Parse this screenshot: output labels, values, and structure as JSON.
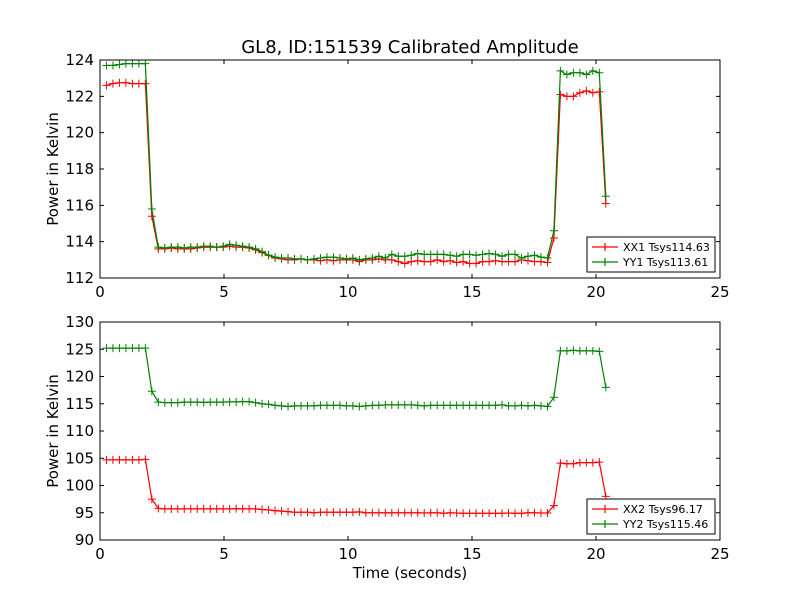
{
  "chart_data": [
    {
      "type": "line",
      "title": "GL8, ID:151539 Calibrated Amplitude",
      "xlabel": "",
      "ylabel": "Power in Kelvin",
      "xlim": [
        0,
        25
      ],
      "ylim": [
        112,
        124
      ],
      "xticks": [
        0,
        5,
        10,
        15,
        20,
        25
      ],
      "yticks": [
        112,
        114,
        116,
        118,
        120,
        122,
        124
      ],
      "legend_position": "lower-right",
      "x_start": 0.26,
      "x_step": 0.2615,
      "series": [
        {
          "name": "XX1 Tsys114.63",
          "color": "#ff0000",
          "values": [
            122.6,
            122.7,
            122.75,
            122.75,
            122.7,
            122.7,
            122.7,
            115.4,
            113.6,
            113.6,
            113.65,
            113.6,
            113.6,
            113.6,
            113.65,
            113.7,
            113.7,
            113.7,
            113.7,
            113.75,
            113.7,
            113.7,
            113.65,
            113.55,
            113.4,
            113.25,
            113.1,
            113.05,
            113.0,
            113.0,
            113.05,
            113.0,
            113.0,
            112.95,
            113.0,
            112.95,
            113.0,
            113.0,
            113.0,
            112.9,
            113.0,
            113.0,
            113.05,
            113.0,
            113.0,
            112.9,
            112.8,
            112.9,
            112.95,
            112.9,
            112.9,
            113.0,
            112.9,
            112.95,
            112.85,
            112.9,
            112.8,
            112.8,
            112.9,
            112.9,
            112.95,
            112.9,
            112.9,
            112.9,
            113.0,
            112.95,
            112.9,
            112.9,
            112.85,
            114.2,
            122.1,
            122.0,
            122.0,
            122.2,
            122.3,
            122.2,
            122.25,
            116.1
          ]
        },
        {
          "name": "YY1 Tsys113.61",
          "color": "#008000",
          "values": [
            123.7,
            123.7,
            123.75,
            123.8,
            123.8,
            123.8,
            123.8,
            115.8,
            113.7,
            113.65,
            113.7,
            113.7,
            113.65,
            113.7,
            113.7,
            113.75,
            113.75,
            113.7,
            113.75,
            113.85,
            113.8,
            113.75,
            113.7,
            113.6,
            113.45,
            113.25,
            113.15,
            113.1,
            113.1,
            113.05,
            113.05,
            113.0,
            113.05,
            113.1,
            113.15,
            113.15,
            113.1,
            113.05,
            113.1,
            113.0,
            113.05,
            113.1,
            113.2,
            113.1,
            113.3,
            113.2,
            113.2,
            113.25,
            113.35,
            113.3,
            113.3,
            113.3,
            113.3,
            113.25,
            113.2,
            113.3,
            113.3,
            113.25,
            113.3,
            113.35,
            113.3,
            113.2,
            113.3,
            113.3,
            113.1,
            113.2,
            113.25,
            113.15,
            113.1,
            114.6,
            123.4,
            123.2,
            123.3,
            123.3,
            123.2,
            123.4,
            123.3,
            116.5
          ]
        }
      ]
    },
    {
      "type": "line",
      "title": "",
      "xlabel": "Time (seconds)",
      "ylabel": "Power in Kelvin",
      "xlim": [
        0,
        25
      ],
      "ylim": [
        90,
        130
      ],
      "xticks": [
        0,
        5,
        10,
        15,
        20,
        25
      ],
      "yticks": [
        90,
        95,
        100,
        105,
        110,
        115,
        120,
        125,
        130
      ],
      "legend_position": "lower-right",
      "x_start": 0.26,
      "x_step": 0.2615,
      "series": [
        {
          "name": "XX2 Tsys96.17",
          "color": "#ff0000",
          "values": [
            104.7,
            104.7,
            104.7,
            104.7,
            104.7,
            104.7,
            104.8,
            97.5,
            95.8,
            95.7,
            95.7,
            95.7,
            95.7,
            95.7,
            95.7,
            95.7,
            95.7,
            95.7,
            95.7,
            95.7,
            95.75,
            95.7,
            95.7,
            95.7,
            95.6,
            95.5,
            95.4,
            95.3,
            95.2,
            95.1,
            95.1,
            95.1,
            95.0,
            95.1,
            95.1,
            95.1,
            95.1,
            95.1,
            95.1,
            95.15,
            95.0,
            95.0,
            95.0,
            95.0,
            95.0,
            95.0,
            95.0,
            95.0,
            95.0,
            94.95,
            95.0,
            95.0,
            94.9,
            95.0,
            94.95,
            94.9,
            94.9,
            94.9,
            94.9,
            94.9,
            94.9,
            94.9,
            94.95,
            94.9,
            94.9,
            95.0,
            95.0,
            94.95,
            94.95,
            96.3,
            104.1,
            104.0,
            104.0,
            104.2,
            104.2,
            104.2,
            104.3,
            98.0
          ]
        },
        {
          "name": "YY2 Tsys115.46",
          "color": "#008000",
          "values": [
            125.2,
            125.2,
            125.2,
            125.2,
            125.2,
            125.2,
            125.2,
            117.3,
            115.3,
            115.2,
            115.2,
            115.2,
            115.3,
            115.3,
            115.3,
            115.25,
            115.3,
            115.3,
            115.3,
            115.35,
            115.35,
            115.4,
            115.4,
            115.2,
            115.0,
            114.9,
            114.7,
            114.6,
            114.5,
            114.6,
            114.6,
            114.6,
            114.6,
            114.7,
            114.7,
            114.7,
            114.7,
            114.6,
            114.6,
            114.5,
            114.6,
            114.7,
            114.7,
            114.8,
            114.8,
            114.8,
            114.8,
            114.8,
            114.7,
            114.6,
            114.7,
            114.7,
            114.7,
            114.7,
            114.7,
            114.7,
            114.7,
            114.7,
            114.7,
            114.7,
            114.7,
            114.8,
            114.6,
            114.6,
            114.7,
            114.6,
            114.7,
            114.6,
            114.5,
            116.2,
            124.7,
            124.7,
            124.8,
            124.7,
            124.7,
            124.7,
            124.6,
            118.0
          ]
        }
      ]
    }
  ]
}
